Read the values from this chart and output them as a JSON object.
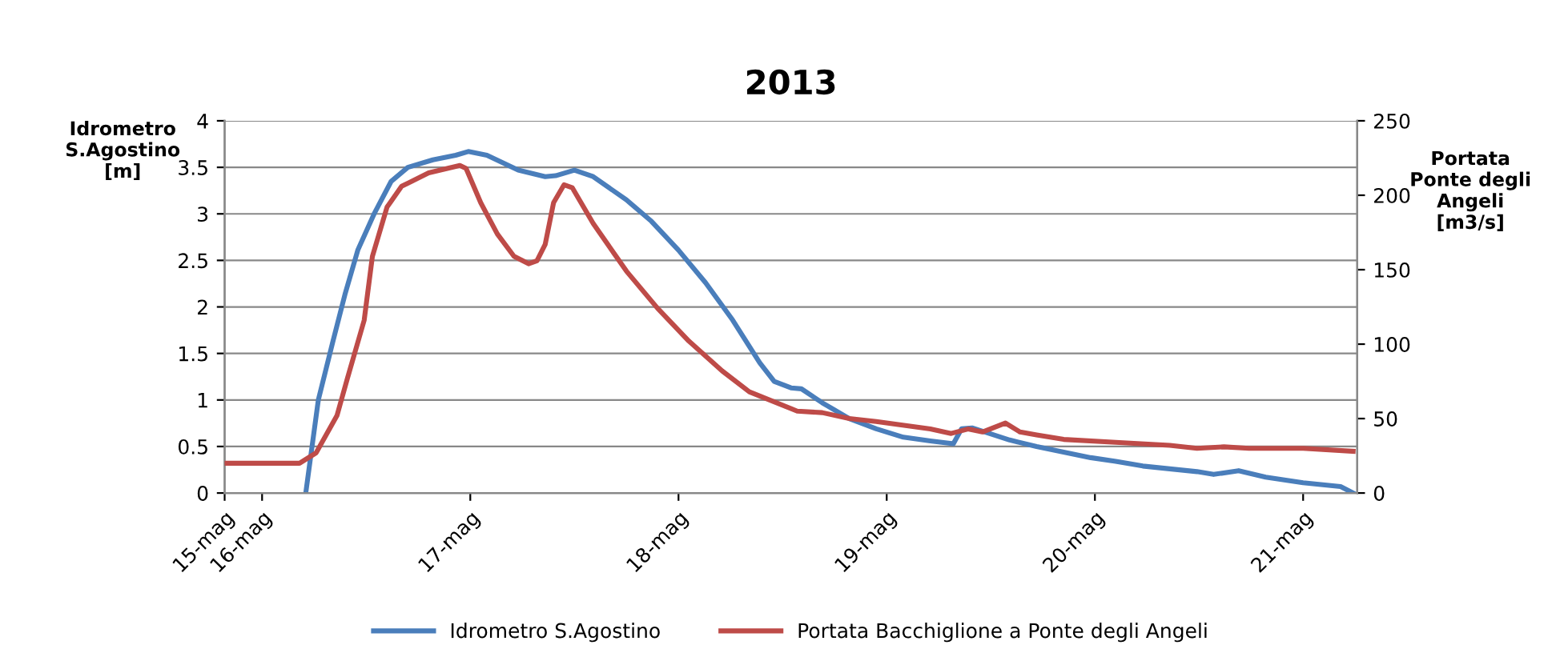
{
  "chart_data": {
    "type": "line",
    "title": "2013",
    "ylabel": "Idrometro\nS.Agostino\n[m]",
    "y2label": "Portata\nPonte degli\nAngeli\n[m3/s]",
    "xlim": [
      "2013-05-15T19:41",
      "2013-05-21T06:14"
    ],
    "xticks": [
      {
        "value": "2013-05-15T19:41",
        "label": "15-mag"
      },
      {
        "value": "2013-05-16",
        "label": "16-mag"
      },
      {
        "value": "2013-05-17",
        "label": "17-mag"
      },
      {
        "value": "2013-05-18",
        "label": "18-mag"
      },
      {
        "value": "2013-05-19",
        "label": "19-mag"
      },
      {
        "value": "2013-05-20",
        "label": "20-mag"
      },
      {
        "value": "2013-05-21",
        "label": "21-mag"
      }
    ],
    "ylim": [
      0,
      4
    ],
    "yticks": [
      0,
      0.5,
      1,
      1.5,
      2,
      2.5,
      3,
      3.5,
      4
    ],
    "y2lim": [
      0,
      250
    ],
    "y2ticks": [
      0,
      50,
      100,
      150,
      200,
      250
    ],
    "grid": "y",
    "legend": "bottom",
    "line_style": "solid",
    "marker": "none",
    "series": [
      {
        "name": "Idrometro S.Agostino",
        "color": "#4a7ebb",
        "x": [
          "2013-05-16T05:02",
          "2013-05-16T06:29",
          "2013-05-16T08:10",
          "2013-05-16T09:36",
          "2013-05-16T11:02",
          "2013-05-16T12:58",
          "2013-05-16T14:53",
          "2013-05-16T16:48",
          "2013-05-16T19:41",
          "2013-05-16T22:19",
          "2013-05-16T23:46",
          "2013-05-17T01:55",
          "2013-05-17T05:31",
          "2013-05-17T08:38",
          "2013-05-17T09:50",
          "2013-05-17T12:00",
          "2013-05-17T14:10",
          "2013-05-17T18:00",
          "2013-05-17T20:53",
          "2013-05-18T00:00",
          "2013-05-18T03:07",
          "2013-05-18T06:14",
          "2013-05-18T09:22",
          "2013-05-18T11:02",
          "2013-05-18T12:58",
          "2013-05-18T14:10",
          "2013-05-18T16:34",
          "2013-05-18T19:41",
          "2013-05-18T22:48",
          "2013-05-19T01:55",
          "2013-05-19T05:02",
          "2013-05-19T07:41",
          "2013-05-19T08:38",
          "2013-05-19T09:50",
          "2013-05-19T14:10",
          "2013-05-19T17:17",
          "2013-05-19T20:24",
          "2013-05-19T23:31",
          "2013-05-20T02:24",
          "2013-05-20T05:31",
          "2013-05-20T08:38",
          "2013-05-20T11:46",
          "2013-05-20T13:41",
          "2013-05-20T16:34",
          "2013-05-20T19:41",
          "2013-05-21T00:00",
          "2013-05-21T04:19",
          "2013-05-21T05:46"
        ],
        "values": [
          0,
          1.0,
          1.63,
          2.15,
          2.61,
          3.01,
          3.35,
          3.5,
          3.58,
          3.63,
          3.67,
          3.63,
          3.47,
          3.4,
          3.41,
          3.47,
          3.4,
          3.15,
          2.92,
          2.61,
          2.26,
          1.86,
          1.4,
          1.2,
          1.13,
          1.12,
          0.97,
          0.8,
          0.69,
          0.6,
          0.56,
          0.53,
          0.69,
          0.7,
          0.57,
          0.5,
          0.44,
          0.38,
          0.34,
          0.29,
          0.26,
          0.23,
          0.2,
          0.24,
          0.17,
          0.11,
          0.07,
          0
        ]
      },
      {
        "name": "Portata Bacchiglione a Ponte degli Angeli",
        "color": "#be4b48",
        "axis": "y2",
        "x": [
          "2013-05-15T19:41",
          "2013-05-16T04:19",
          "2013-05-16T06:14",
          "2013-05-16T08:38",
          "2013-05-16T09:50",
          "2013-05-16T11:46",
          "2013-05-16T12:43",
          "2013-05-16T14:24",
          "2013-05-16T16:05",
          "2013-05-16T19:12",
          "2013-05-16T22:48",
          "2013-05-16T23:31",
          "2013-05-17T01:12",
          "2013-05-17T03:07",
          "2013-05-17T05:02",
          "2013-05-17T06:43",
          "2013-05-17T07:41",
          "2013-05-17T08:38",
          "2013-05-17T09:36",
          "2013-05-17T10:48",
          "2013-05-17T11:46",
          "2013-05-17T14:10",
          "2013-05-17T18:00",
          "2013-05-17T21:36",
          "2013-05-18T01:12",
          "2013-05-18T05:02",
          "2013-05-18T08:10",
          "2013-05-18T13:41",
          "2013-05-18T16:34",
          "2013-05-18T19:41",
          "2013-05-18T22:48",
          "2013-05-19T05:02",
          "2013-05-19T07:26",
          "2013-05-19T09:22",
          "2013-05-19T11:02",
          "2013-05-19T13:41",
          "2013-05-19T15:22",
          "2013-05-19T17:17",
          "2013-05-19T20:24",
          "2013-05-20T02:24",
          "2013-05-20T08:38",
          "2013-05-20T11:46",
          "2013-05-20T14:53",
          "2013-05-20T17:46",
          "2013-05-21T00:00",
          "2013-05-21T05:46"
        ],
        "values": [
          20,
          20,
          27,
          52,
          77,
          116,
          159,
          192,
          206,
          215,
          220,
          218,
          195,
          174,
          159,
          154,
          156,
          167,
          195,
          207,
          205,
          181,
          149,
          124,
          102,
          82,
          68,
          55,
          54,
          50,
          48,
          43,
          40,
          43,
          41,
          47,
          41,
          39,
          36,
          34,
          32,
          30,
          31,
          30,
          30,
          28
        ]
      }
    ]
  }
}
